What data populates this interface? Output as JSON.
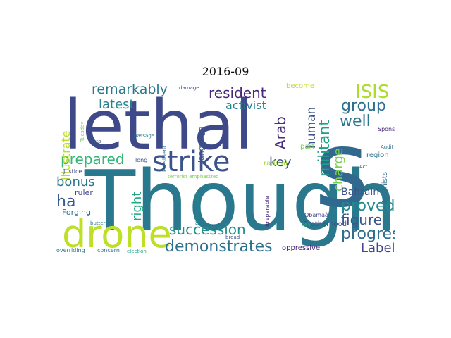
{
  "title": "2016-09",
  "words": [
    {
      "text": "Though",
      "color": "#2a788e",
      "rotated": false
    },
    {
      "text": "lethal",
      "color": "#3e4989",
      "rotated": false
    },
    {
      "text": "s",
      "color": "#31688e",
      "rotated": false
    },
    {
      "text": "drone",
      "color": "#bddf26",
      "rotated": false
    },
    {
      "text": "strike",
      "color": "#3b528b",
      "rotated": false
    },
    {
      "text": "demonstrates",
      "color": "#2c728e",
      "rotated": false
    },
    {
      "text": "succession",
      "color": "#21918c",
      "rotated": false
    },
    {
      "text": "progress",
      "color": "#2f6c8e",
      "rotated": false
    },
    {
      "text": "remarkably",
      "color": "#2a788e",
      "rotated": false
    },
    {
      "text": "resident",
      "color": "#482878",
      "rotated": false
    },
    {
      "text": "ISIS",
      "color": "#addc30",
      "rotated": false
    },
    {
      "text": "group",
      "color": "#2d708e",
      "rotated": false
    },
    {
      "text": "Arab",
      "color": "#472f7d",
      "rotated": true
    },
    {
      "text": "human",
      "color": "#3b528b",
      "rotated": true
    },
    {
      "text": "militant",
      "color": "#1fa088",
      "rotated": true
    },
    {
      "text": "well",
      "color": "#2a768e",
      "rotated": false
    },
    {
      "text": "key",
      "color": "#3e4a89",
      "rotated": false
    },
    {
      "text": "charge",
      "color": "#7ad151",
      "rotated": true
    },
    {
      "text": "proved",
      "color": "#23888e",
      "rotated": false
    },
    {
      "text": "figure",
      "color": "#3b528b",
      "rotated": false
    },
    {
      "text": "Label",
      "color": "#414487",
      "rotated": false
    },
    {
      "text": "prepared",
      "color": "#35b779",
      "rotated": false
    },
    {
      "text": "latest",
      "color": "#25858e",
      "rotated": false
    },
    {
      "text": "activist",
      "color": "#25838e",
      "rotated": false
    },
    {
      "text": "illustrate",
      "color": "#b8de29",
      "rotated": true
    },
    {
      "text": "bonus",
      "color": "#2a788e",
      "rotated": false
    },
    {
      "text": "ha",
      "color": "#38598c",
      "rotated": false
    },
    {
      "text": "right",
      "color": "#22a785",
      "rotated": true
    },
    {
      "text": "Bahrain",
      "color": "#3b528b",
      "rotated": false
    },
    {
      "text": "Islamists",
      "color": "#2d708e",
      "rotated": true
    },
    {
      "text": "language",
      "color": "#39568c",
      "rotated": true
    },
    {
      "text": "Brotherhood",
      "color": "#3e4a89",
      "rotated": false
    },
    {
      "text": "oppressive",
      "color": "#482576",
      "rotated": false
    },
    {
      "text": "radical",
      "color": "#a0da39",
      "rotated": false
    },
    {
      "text": "ruler",
      "color": "#404588",
      "rotated": false
    },
    {
      "text": "Forging",
      "color": "#2c728e",
      "rotated": false
    },
    {
      "text": "region",
      "color": "#2c728e",
      "rotated": false
    },
    {
      "text": "part",
      "color": "#7ad151",
      "rotated": false
    },
    {
      "text": "become",
      "color": "#bddf26",
      "rotated": false
    },
    {
      "text": "relationship",
      "color": "#25848e",
      "rotated": true
    },
    {
      "text": "President",
      "color": "#2c728e",
      "rotated": true
    },
    {
      "text": "irreparable",
      "color": "#482878",
      "rotated": true
    },
    {
      "text": "Sponsors",
      "color": "#482878",
      "rotated": false
    },
    {
      "text": "Audit",
      "color": "#2d708e",
      "rotated": false
    },
    {
      "text": "Act",
      "color": "#3b528b",
      "rotated": false
    },
    {
      "text": "Obamaâ",
      "color": "#414487",
      "rotated": false
    },
    {
      "text": "Justice",
      "color": "#414487",
      "rotated": false
    },
    {
      "text": "long",
      "color": "#3b528b",
      "rotated": false
    },
    {
      "text": "butter",
      "color": "#2a788e",
      "rotated": false
    },
    {
      "text": "concern",
      "color": "#2a788e",
      "rotated": false
    },
    {
      "text": "overriding",
      "color": "#2a788e",
      "rotated": false
    },
    {
      "text": "election",
      "color": "#20a486",
      "rotated": false
    },
    {
      "text": "terrorist emphasized",
      "color": "#7ad151",
      "rotated": false
    },
    {
      "text": "veto",
      "color": "#39568c",
      "rotated": false
    },
    {
      "text": "damage",
      "color": "#3b528b",
      "rotated": false
    },
    {
      "text": "Tuesday",
      "color": "#6ece58",
      "rotated": true
    },
    {
      "text": "passage",
      "color": "#2a788e",
      "rotated": false
    },
    {
      "text": "bread",
      "color": "#3b528b",
      "rotated": false
    },
    {
      "text": "sea",
      "color": "#22a785",
      "rotated": false
    }
  ]
}
